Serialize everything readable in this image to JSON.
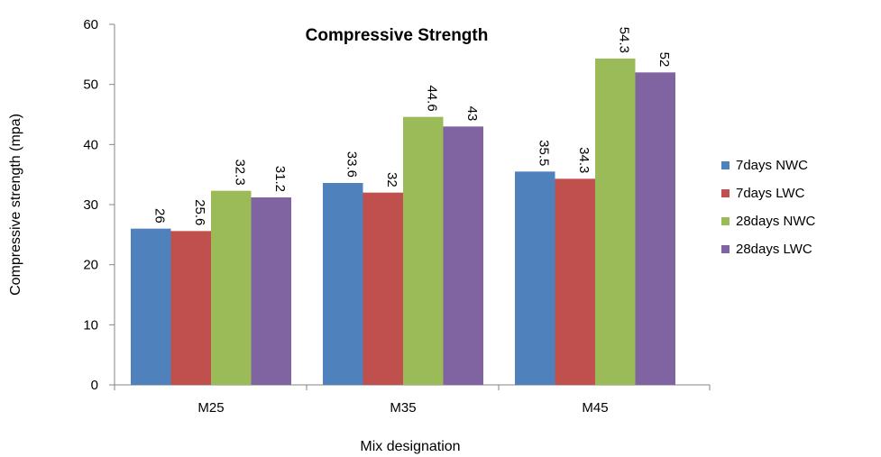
{
  "chart_data": {
    "type": "bar",
    "title": "Compressive Strength",
    "xlabel": "Mix designation",
    "ylabel": "Compressive strength (mpa)",
    "categories": [
      "M25",
      "M35",
      "M45"
    ],
    "ylim": [
      0,
      60
    ],
    "yticks": [
      0,
      10,
      20,
      30,
      40,
      50,
      60
    ],
    "grid": false,
    "legend_position": "right",
    "series": [
      {
        "name": "7days NWC",
        "color": "#4f81bd",
        "values": [
          26,
          33.6,
          35.5
        ],
        "labels": [
          "26",
          "33.6",
          "35.5"
        ]
      },
      {
        "name": "7days LWC",
        "color": "#c0504d",
        "values": [
          25.6,
          32,
          34.3
        ],
        "labels": [
          "25.6",
          "32",
          "34.3"
        ]
      },
      {
        "name": "28days NWC",
        "color": "#9bbb59",
        "values": [
          32.3,
          44.6,
          54.3
        ],
        "labels": [
          "32.3",
          "44.6",
          "54.3"
        ]
      },
      {
        "name": "28days LWC",
        "color": "#8064a2",
        "values": [
          31.2,
          43,
          52
        ],
        "labels": [
          "31.2",
          "43",
          "52"
        ]
      }
    ]
  }
}
